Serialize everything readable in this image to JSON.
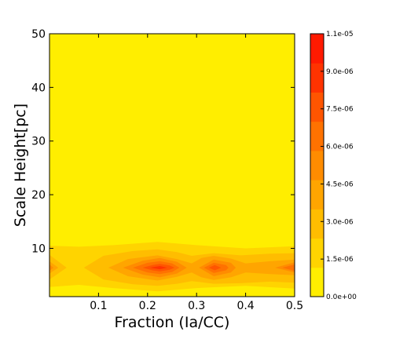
{
  "chart_data": {
    "type": "heatmap",
    "title": "",
    "xlabel": "Fraction (Ia/CC)",
    "ylabel": "Scale Height[pc]",
    "xlim": [
      0.0,
      0.5
    ],
    "ylim": [
      1,
      50
    ],
    "xticks": [
      0.1,
      0.2,
      0.3,
      0.4,
      0.5
    ],
    "xtick_labels": [
      "0.1",
      "0.2",
      "0.3",
      "0.4",
      "0.5"
    ],
    "yticks": [
      10,
      20,
      30,
      40,
      50
    ],
    "ytick_labels": [
      "10",
      "20",
      "30",
      "40",
      "50"
    ],
    "colorbar": {
      "levels": [
        0.0,
        1.5e-06,
        3e-06,
        4.5e-06,
        6e-06,
        7.5e-06,
        9e-06,
        1.1e-05
      ],
      "labels": [
        "0.0e+00",
        "1.5e-06",
        "3.0e-06",
        "4.5e-06",
        "6.0e-06",
        "7.5e-06",
        "9.0e-06",
        "1.1e-05"
      ],
      "colors": [
        "#ffee00",
        "#ffd400",
        "#ffbd00",
        "#ffa500",
        "#ff8c00",
        "#ff7200",
        "#ff5500",
        "#ff3300",
        "#ff1a00"
      ]
    },
    "regions": [
      {
        "level": 1,
        "points": [
          [
            0.0,
            10.5
          ],
          [
            0.06,
            10.3
          ],
          [
            0.13,
            10.6
          ],
          [
            0.22,
            11.2
          ],
          [
            0.3,
            10.6
          ],
          [
            0.4,
            10.0
          ],
          [
            0.5,
            10.4
          ],
          [
            0.5,
            2.5
          ],
          [
            0.4,
            3.0
          ],
          [
            0.3,
            2.6
          ],
          [
            0.22,
            2.0
          ],
          [
            0.13,
            2.6
          ],
          [
            0.06,
            3.2
          ],
          [
            0.0,
            2.8
          ]
        ]
      },
      {
        "level": 2,
        "points": [
          [
            0.0,
            8.8
          ],
          [
            0.035,
            6.4
          ],
          [
            0.0,
            4.2
          ]
        ]
      },
      {
        "level": 2,
        "points": [
          [
            0.07,
            6.4
          ],
          [
            0.11,
            8.6
          ],
          [
            0.17,
            9.5
          ],
          [
            0.22,
            9.8
          ],
          [
            0.26,
            9.3
          ],
          [
            0.29,
            8.6
          ],
          [
            0.335,
            9.1
          ],
          [
            0.39,
            8.7
          ],
          [
            0.45,
            9.0
          ],
          [
            0.5,
            9.1
          ],
          [
            0.5,
            3.6
          ],
          [
            0.45,
            3.8
          ],
          [
            0.39,
            3.5
          ],
          [
            0.335,
            3.4
          ],
          [
            0.29,
            3.9
          ],
          [
            0.26,
            3.4
          ],
          [
            0.22,
            3.0
          ],
          [
            0.17,
            3.3
          ],
          [
            0.11,
            4.2
          ]
        ]
      },
      {
        "level": 3,
        "points": [
          [
            0.0,
            7.6
          ],
          [
            0.018,
            6.4
          ],
          [
            0.0,
            5.3
          ]
        ]
      },
      {
        "level": 3,
        "points": [
          [
            0.12,
            6.4
          ],
          [
            0.16,
            8.0
          ],
          [
            0.22,
            8.7
          ],
          [
            0.26,
            8.0
          ],
          [
            0.29,
            7.2
          ],
          [
            0.31,
            8.2
          ],
          [
            0.335,
            8.6
          ],
          [
            0.37,
            8.1
          ],
          [
            0.4,
            7.2
          ],
          [
            0.45,
            7.6
          ],
          [
            0.5,
            7.9
          ],
          [
            0.5,
            5.0
          ],
          [
            0.45,
            5.2
          ],
          [
            0.4,
            5.5
          ],
          [
            0.37,
            4.6
          ],
          [
            0.335,
            4.1
          ],
          [
            0.31,
            4.6
          ],
          [
            0.29,
            5.5
          ],
          [
            0.26,
            4.7
          ],
          [
            0.22,
            4.0
          ],
          [
            0.16,
            4.8
          ]
        ]
      },
      {
        "level": 4,
        "points": [
          [
            0.0,
            7.0
          ],
          [
            0.008,
            6.4
          ],
          [
            0.0,
            5.8
          ]
        ]
      },
      {
        "level": 4,
        "points": [
          [
            0.15,
            6.4
          ],
          [
            0.19,
            7.7
          ],
          [
            0.225,
            8.2
          ],
          [
            0.26,
            7.5
          ],
          [
            0.28,
            6.4
          ],
          [
            0.26,
            5.3
          ],
          [
            0.225,
            4.6
          ],
          [
            0.19,
            5.1
          ]
        ]
      },
      {
        "level": 4,
        "points": [
          [
            0.305,
            6.4
          ],
          [
            0.335,
            7.9
          ],
          [
            0.37,
            7.3
          ],
          [
            0.38,
            6.4
          ],
          [
            0.37,
            5.5
          ],
          [
            0.335,
            4.8
          ]
        ]
      },
      {
        "level": 4,
        "points": [
          [
            0.46,
            6.4
          ],
          [
            0.5,
            7.4
          ],
          [
            0.5,
            5.5
          ]
        ]
      },
      {
        "level": 5,
        "points": [
          [
            0.17,
            6.4
          ],
          [
            0.2,
            7.3
          ],
          [
            0.225,
            7.6
          ],
          [
            0.25,
            7.2
          ],
          [
            0.265,
            6.4
          ],
          [
            0.25,
            5.6
          ],
          [
            0.225,
            5.2
          ],
          [
            0.2,
            5.5
          ]
        ]
      },
      {
        "level": 5,
        "points": [
          [
            0.315,
            6.4
          ],
          [
            0.335,
            7.3
          ],
          [
            0.36,
            6.9
          ],
          [
            0.365,
            6.4
          ],
          [
            0.36,
            5.9
          ],
          [
            0.335,
            5.4
          ]
        ]
      },
      {
        "level": 5,
        "points": [
          [
            0.475,
            6.4
          ],
          [
            0.5,
            7.0
          ],
          [
            0.5,
            5.8
          ]
        ]
      },
      {
        "level": 6,
        "points": [
          [
            0.19,
            6.4
          ],
          [
            0.21,
            6.9
          ],
          [
            0.225,
            7.1
          ],
          [
            0.245,
            6.8
          ],
          [
            0.255,
            6.4
          ],
          [
            0.245,
            6.0
          ],
          [
            0.225,
            5.7
          ],
          [
            0.21,
            5.9
          ]
        ]
      },
      {
        "level": 6,
        "points": [
          [
            0.325,
            6.4
          ],
          [
            0.337,
            6.9
          ],
          [
            0.35,
            6.4
          ],
          [
            0.337,
            5.9
          ]
        ]
      },
      {
        "level": 7,
        "points": [
          [
            0.205,
            6.4
          ],
          [
            0.225,
            6.7
          ],
          [
            0.24,
            6.4
          ],
          [
            0.225,
            6.1
          ]
        ]
      }
    ]
  }
}
